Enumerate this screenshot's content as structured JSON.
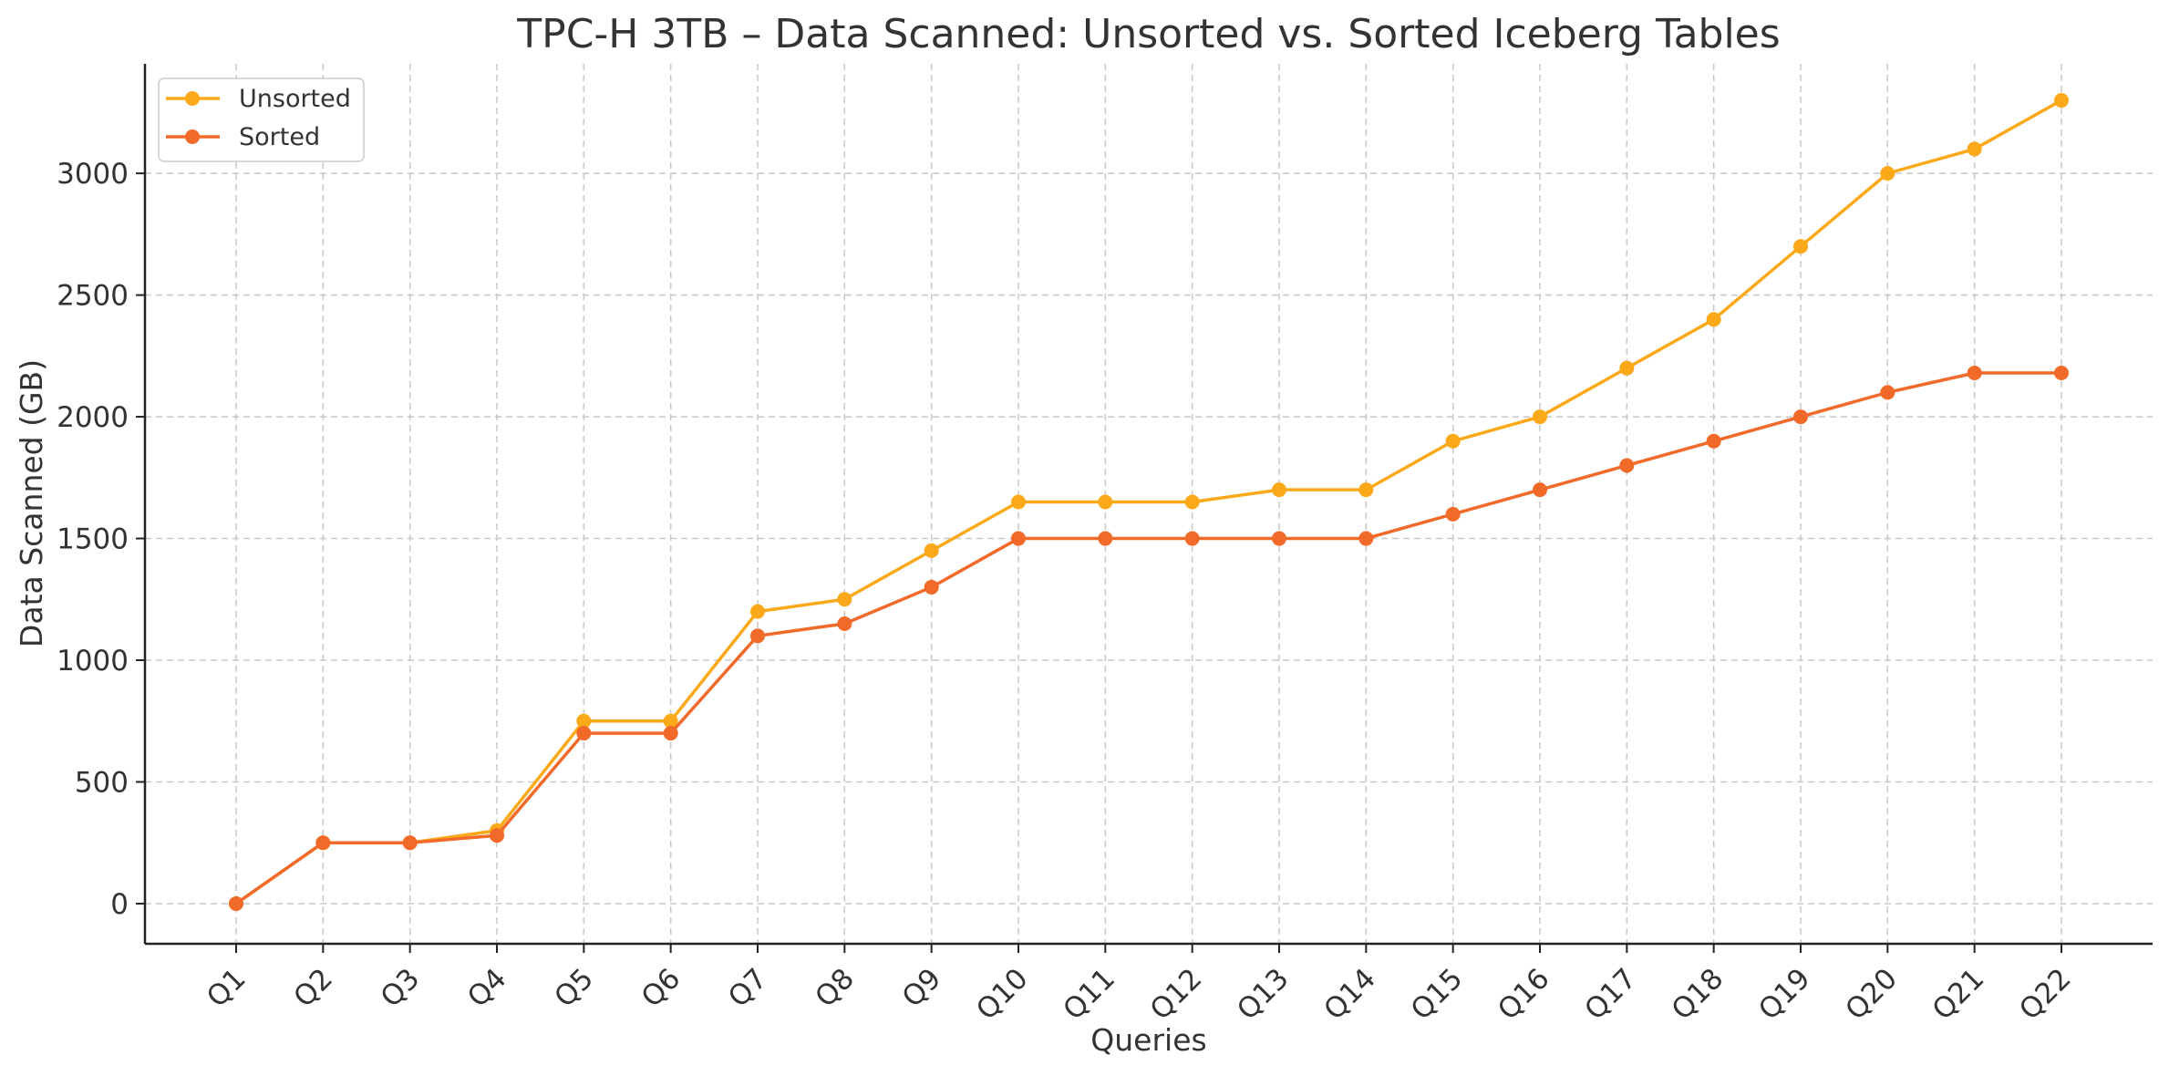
{
  "chart_data": {
    "type": "line",
    "title": "TPC-H 3TB – Data Scanned: Unsorted vs. Sorted Iceberg Tables",
    "xlabel": "Queries",
    "ylabel": "Data Scanned (GB)",
    "categories": [
      "Q1",
      "Q2",
      "Q3",
      "Q4",
      "Q5",
      "Q6",
      "Q7",
      "Q8",
      "Q9",
      "Q10",
      "Q11",
      "Q12",
      "Q13",
      "Q14",
      "Q15",
      "Q16",
      "Q17",
      "Q18",
      "Q19",
      "Q20",
      "Q21",
      "Q22"
    ],
    "yticks": [
      0,
      500,
      1000,
      1500,
      2000,
      2500,
      3000
    ],
    "ylim": [
      -165,
      3450
    ],
    "grid": true,
    "legend_position": "top-left",
    "series": [
      {
        "name": "Unsorted",
        "color": "#FBA919",
        "values": [
          0,
          250,
          250,
          300,
          750,
          750,
          1200,
          1250,
          1450,
          1650,
          1650,
          1650,
          1700,
          1700,
          1900,
          2000,
          2200,
          2400,
          2700,
          3000,
          3100,
          3300
        ]
      },
      {
        "name": "Sorted",
        "color": "#F26A2A",
        "values": [
          0,
          250,
          250,
          280,
          700,
          700,
          1100,
          1150,
          1300,
          1500,
          1500,
          1500,
          1500,
          1500,
          1600,
          1700,
          1800,
          1900,
          2000,
          2100,
          2180,
          2180
        ]
      }
    ]
  }
}
